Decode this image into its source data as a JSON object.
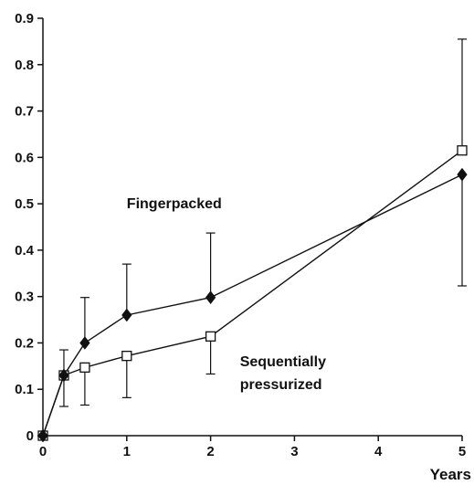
{
  "chart_data": {
    "type": "line",
    "xlabel": "Years",
    "ylabel": "",
    "xlim": [
      0,
      5
    ],
    "ylim": [
      0,
      0.9
    ],
    "x_ticks": [
      "0",
      "1",
      "2",
      "3",
      "4",
      "5"
    ],
    "y_ticks": [
      "0",
      "0.1",
      "0.2",
      "0.3",
      "0.4",
      "0.5",
      "0.6",
      "0.7",
      "0.8",
      "0.9"
    ],
    "grid": false,
    "legend": "none",
    "series": [
      {
        "name": "Fingerpacked",
        "marker": "filled-diamond",
        "color": "#111111",
        "points": [
          {
            "x": 0,
            "y": 0
          },
          {
            "x": 0.25,
            "y": 0.13,
            "err_low": 0.063
          },
          {
            "x": 0.5,
            "y": 0.2,
            "err_high": 0.298
          },
          {
            "x": 1.0,
            "y": 0.26,
            "err_high": 0.37
          },
          {
            "x": 2.0,
            "y": 0.298,
            "err_high": 0.437
          },
          {
            "x": 5.0,
            "y": 0.563,
            "err_low": 0.323
          }
        ]
      },
      {
        "name": "Sequentially pressurized",
        "marker": "open-square",
        "color": "#111111",
        "points": [
          {
            "x": 0,
            "y": 0
          },
          {
            "x": 0.25,
            "y": 0.13,
            "err_high": 0.185
          },
          {
            "x": 0.5,
            "y": 0.147,
            "err_low": 0.066
          },
          {
            "x": 1.0,
            "y": 0.172,
            "err_low": 0.082
          },
          {
            "x": 2.0,
            "y": 0.214,
            "err_low": 0.133
          },
          {
            "x": 5.0,
            "y": 0.615,
            "err_high": 0.855
          }
        ]
      }
    ],
    "annotations": [
      {
        "text": "Fingerpacked",
        "x": 1.0,
        "y": 0.49
      },
      {
        "text": "Sequentially",
        "x": 2.35,
        "y": 0.15
      },
      {
        "text": "pressurized",
        "x": 2.35,
        "y": 0.1
      }
    ]
  }
}
